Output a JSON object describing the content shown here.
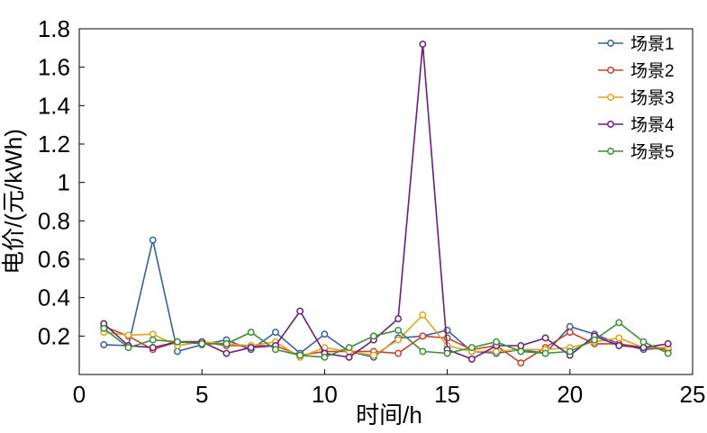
{
  "chart_data": {
    "type": "line",
    "xlabel": "时间/h",
    "ylabel": "电价/(元/kWh)",
    "xlim": [
      0,
      25
    ],
    "ylim": [
      0,
      1.8
    ],
    "xticks": [
      0,
      5,
      10,
      15,
      20,
      25
    ],
    "xtick_labels": [
      "0",
      "5",
      "10",
      "15",
      "20",
      "25"
    ],
    "yticks": [
      0.2,
      0.4,
      0.6,
      0.8,
      1,
      1.2,
      1.4,
      1.6,
      1.8
    ],
    "ytick_labels": [
      "0.2",
      "0.4",
      "0.6",
      "0.8",
      "1",
      "1.2",
      "1.4",
      "1.6",
      "1.8"
    ],
    "grid": false,
    "legend_position": "top-right",
    "x": [
      1,
      2,
      3,
      4,
      5,
      6,
      7,
      8,
      9,
      10,
      11,
      12,
      13,
      14,
      15,
      16,
      17,
      18,
      19,
      20,
      21,
      22,
      23,
      24
    ],
    "series": [
      {
        "name": "场景1",
        "color": "#3a5fa0",
        "values": [
          0.155,
          0.15,
          0.7,
          0.12,
          0.155,
          0.18,
          0.13,
          0.22,
          0.11,
          0.21,
          0.12,
          0.09,
          0.19,
          0.2,
          0.23,
          0.12,
          0.11,
          0.13,
          0.11,
          0.25,
          0.21,
          0.16,
          0.13,
          0.14
        ]
      },
      {
        "name": "场景2",
        "color": "#c8432a",
        "values": [
          0.25,
          0.2,
          0.13,
          0.17,
          0.17,
          0.15,
          0.15,
          0.15,
          0.1,
          0.12,
          0.12,
          0.12,
          0.11,
          0.2,
          0.19,
          0.13,
          0.15,
          0.06,
          0.14,
          0.22,
          0.16,
          0.16,
          0.14,
          0.13
        ]
      },
      {
        "name": "场景3",
        "color": "#e0a41e",
        "values": [
          0.22,
          0.205,
          0.21,
          0.15,
          0.17,
          0.16,
          0.15,
          0.17,
          0.09,
          0.14,
          0.12,
          0.1,
          0.18,
          0.31,
          0.15,
          0.12,
          0.12,
          0.13,
          0.13,
          0.14,
          0.17,
          0.19,
          0.14,
          0.14
        ]
      },
      {
        "name": "场景4",
        "color": "#6a1f7c",
        "values": [
          0.265,
          0.15,
          0.14,
          0.17,
          0.17,
          0.11,
          0.14,
          0.15,
          0.33,
          0.11,
          0.09,
          0.18,
          0.29,
          1.72,
          0.13,
          0.08,
          0.15,
          0.15,
          0.19,
          0.1,
          0.2,
          0.15,
          0.14,
          0.16
        ]
      },
      {
        "name": "场景5",
        "color": "#3d8f35",
        "values": [
          0.24,
          0.14,
          0.18,
          0.17,
          0.16,
          0.16,
          0.22,
          0.13,
          0.1,
          0.09,
          0.14,
          0.2,
          0.23,
          0.12,
          0.11,
          0.14,
          0.17,
          0.12,
          0.11,
          0.12,
          0.18,
          0.27,
          0.17,
          0.11
        ]
      }
    ]
  }
}
